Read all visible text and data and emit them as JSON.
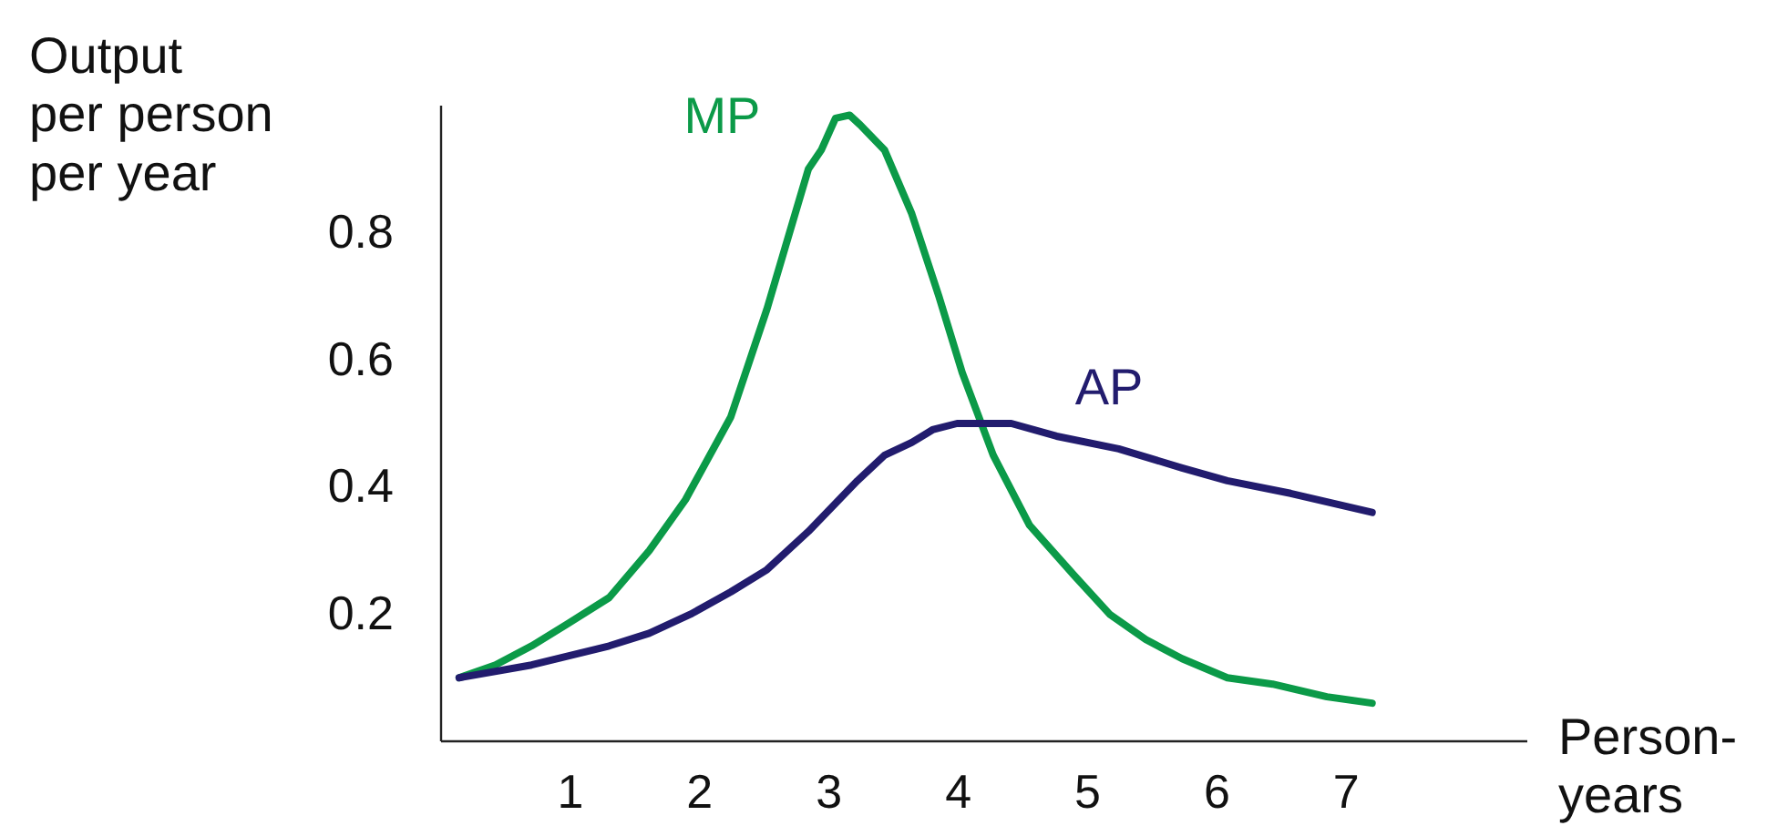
{
  "chart_data": {
    "type": "line",
    "xlabel": "Person-\nyears",
    "ylabel": "Output\nper person\nper year",
    "xlim": [
      0,
      8.4
    ],
    "ylim": [
      0,
      1.0
    ],
    "xticks": [
      1,
      2,
      3,
      4,
      5,
      6,
      7
    ],
    "yticks": [
      0.2,
      0.4,
      0.6,
      0.8
    ],
    "grid": false,
    "legend": false,
    "marker": "none",
    "line_style": "solid",
    "series": [
      {
        "name": "MP",
        "color": "#0b9a48",
        "x": [
          0.14,
          0.42,
          0.7,
          0.98,
          1.3,
          1.61,
          1.89,
          2.24,
          2.52,
          2.84,
          2.94,
          3.05,
          3.16,
          3.24,
          3.43,
          3.64,
          3.85,
          4.03,
          4.27,
          4.55,
          4.9,
          5.17,
          5.45,
          5.73,
          6.08,
          6.43,
          6.85,
          7.2
        ],
        "values": [
          0.1,
          0.12,
          0.15,
          0.185,
          0.226,
          0.3,
          0.38,
          0.51,
          0.68,
          0.9,
          0.93,
          0.98,
          0.985,
          0.97,
          0.93,
          0.83,
          0.7,
          0.58,
          0.45,
          0.34,
          0.26,
          0.2,
          0.16,
          0.13,
          0.1,
          0.09,
          0.07,
          0.06
        ]
      },
      {
        "name": "AP",
        "color": "#221c6e",
        "x": [
          0.14,
          0.7,
          1.3,
          1.61,
          1.93,
          2.24,
          2.52,
          2.84,
          3.22,
          3.43,
          3.64,
          3.8,
          3.99,
          4.41,
          4.76,
          5.24,
          5.73,
          6.08,
          6.57,
          7.2
        ],
        "values": [
          0.1,
          0.12,
          0.15,
          0.17,
          0.2,
          0.235,
          0.27,
          0.33,
          0.41,
          0.45,
          0.47,
          0.49,
          0.5,
          0.5,
          0.48,
          0.46,
          0.43,
          0.41,
          0.39,
          0.36
        ]
      }
    ]
  }
}
